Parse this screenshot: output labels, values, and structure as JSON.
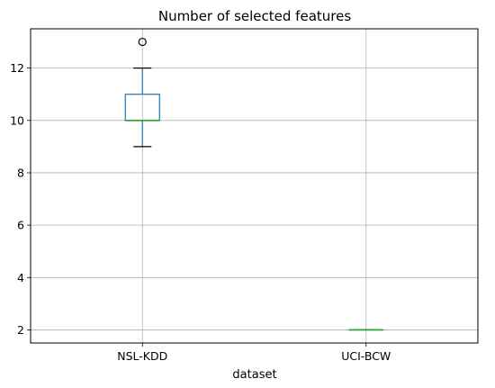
{
  "chart_data": {
    "type": "box",
    "title": "Number of selected features",
    "xlabel": "dataset",
    "ylabel": "",
    "categories": [
      "NSL-KDD",
      "UCI-BCW"
    ],
    "boxes": [
      {
        "category": "NSL-KDD",
        "whisker_low": 9,
        "q1": 10,
        "median": 10,
        "q3": 11,
        "whisker_high": 12,
        "outliers": [
          13
        ]
      },
      {
        "category": "UCI-BCW",
        "whisker_low": 2,
        "q1": 2,
        "median": 2,
        "q3": 2,
        "whisker_high": 2,
        "outliers": []
      }
    ],
    "yticks": [
      2,
      4,
      6,
      8,
      10,
      12
    ],
    "ylim": [
      1.5,
      13.5
    ],
    "grid": true,
    "colors": {
      "box": "#1f77b4",
      "median": "#2ca02c",
      "whisker": "#1f77b4",
      "cap": "#000000",
      "outlier": "#000000",
      "grid": "#b0b0b0"
    }
  }
}
